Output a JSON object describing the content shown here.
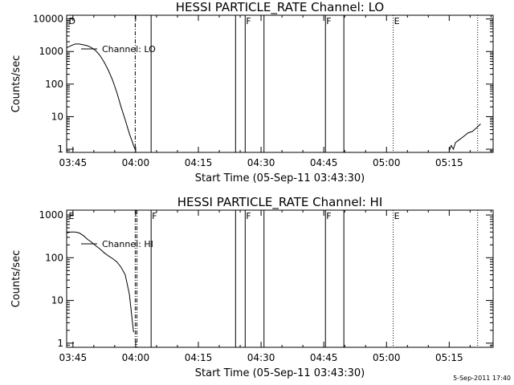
{
  "chart_data": [
    {
      "type": "line",
      "title": "HESSI PARTICLE_RATE Channel: LO",
      "xlabel": "Start Time (05-Sep-11 03:43:30)",
      "ylabel": "Counts/sec",
      "yscale": "log",
      "ylim": [
        0.8,
        13000
      ],
      "xlim_minutes": [
        0,
        102
      ],
      "x_tick_labels": [
        "03:45",
        "04:00",
        "04:15",
        "04:30",
        "04:45",
        "05:00",
        "05:15"
      ],
      "x_tick_minutes": [
        1.5,
        16.5,
        31.5,
        46.5,
        61.5,
        76.5,
        91.5
      ],
      "y_tick_labels": [
        "1",
        "10",
        "100",
        "1000",
        "10000"
      ],
      "y_tick_values": [
        1,
        10,
        100,
        1000,
        10000
      ],
      "legend": "Channel: LO",
      "legend_position": "top-left",
      "series": [
        {
          "name": "Channel: LO",
          "segments": [
            {
              "x": [
                0,
                1,
                2,
                3,
                4,
                5,
                6,
                7,
                8,
                9,
                10,
                11,
                12,
                13,
                14,
                15,
                15.5,
                16,
                16.5
              ],
              "y": [
                1300,
                1500,
                1700,
                1700,
                1600,
                1500,
                1300,
                1050,
                750,
                460,
                260,
                130,
                55,
                20,
                8,
                3,
                2,
                1.3,
                0.9
              ]
            },
            {
              "x": [
                91.5,
                92,
                92.5,
                93,
                94,
                95,
                96,
                97,
                98,
                99
              ],
              "y": [
                0.9,
                1.3,
                1.0,
                1.6,
                2.0,
                2.5,
                3.2,
                3.5,
                4.5,
                6
              ]
            }
          ]
        }
      ],
      "markers": [
        {
          "x": 0.3,
          "label": "D",
          "line": "none"
        },
        {
          "x": 16.4,
          "label": "",
          "line": "dashdot"
        },
        {
          "x": 20.2,
          "label": "",
          "line": "solid"
        },
        {
          "x": 40.4,
          "label": "",
          "line": "solid"
        },
        {
          "x": 42.7,
          "label": "F",
          "line": "solid"
        },
        {
          "x": 47.2,
          "label": "",
          "line": "solid"
        },
        {
          "x": 61.9,
          "label": "F",
          "line": "solid"
        },
        {
          "x": 66.3,
          "label": "",
          "line": "solid"
        },
        {
          "x": 78.1,
          "label": "E",
          "line": "dotted"
        },
        {
          "x": 98.3,
          "label": "",
          "line": "dotted"
        }
      ]
    },
    {
      "type": "line",
      "title": "HESSI PARTICLE_RATE Channel: HI",
      "xlabel": "Start Time (05-Sep-11 03:43:30)",
      "ylabel": "Counts/sec",
      "yscale": "log",
      "ylim": [
        0.8,
        1300
      ],
      "xlim_minutes": [
        0,
        102
      ],
      "x_tick_labels": [
        "03:45",
        "04:00",
        "04:15",
        "04:30",
        "04:45",
        "05:00",
        "05:15"
      ],
      "x_tick_minutes": [
        1.5,
        16.5,
        31.5,
        46.5,
        61.5,
        76.5,
        91.5
      ],
      "y_tick_labels": [
        "1",
        "10",
        "100",
        "1000"
      ],
      "y_tick_values": [
        1,
        10,
        100,
        1000
      ],
      "legend": "Channel: HI",
      "legend_position": "top-left",
      "series": [
        {
          "name": "Channel: HI",
          "segments": [
            {
              "x": [
                0,
                1,
                2,
                3,
                4,
                5,
                6,
                7,
                8,
                9,
                10,
                11,
                12,
                13,
                14,
                15,
                15.5,
                16
              ],
              "y": [
                380,
                400,
                400,
                380,
                330,
                270,
                230,
                190,
                160,
                130,
                110,
                95,
                80,
                60,
                40,
                14,
                5,
                1.8
              ]
            }
          ]
        }
      ],
      "markers": [
        {
          "x": 0.3,
          "label": "E",
          "line": "none"
        },
        {
          "x": 16.4,
          "label": "",
          "line": "dashdot"
        },
        {
          "x": 16.8,
          "label": "",
          "line": "dashdot"
        },
        {
          "x": 20.2,
          "label": "F",
          "line": "solid"
        },
        {
          "x": 40.4,
          "label": "",
          "line": "solid"
        },
        {
          "x": 42.7,
          "label": "F",
          "line": "solid"
        },
        {
          "x": 47.2,
          "label": "",
          "line": "solid"
        },
        {
          "x": 61.9,
          "label": "F",
          "line": "solid"
        },
        {
          "x": 66.3,
          "label": "",
          "line": "solid"
        },
        {
          "x": 78.1,
          "label": "E",
          "line": "dotted"
        },
        {
          "x": 98.3,
          "label": "",
          "line": "dotted"
        }
      ]
    }
  ],
  "footer": {
    "timestamp": "5-Sep-2011 17:40"
  }
}
